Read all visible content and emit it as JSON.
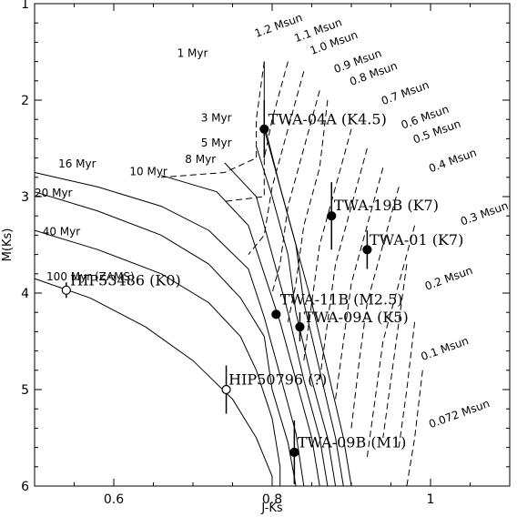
{
  "chart_data": {
    "type": "line",
    "xlabel": "J-Ks",
    "ylabel": "M(Ks)",
    "xlim": [
      0.5,
      1.1
    ],
    "ylim": [
      6,
      1
    ],
    "xticks": [
      0.6,
      0.8,
      1.0
    ],
    "xtick_labels": [
      "0.6",
      "0.8",
      "1"
    ],
    "yticks": [
      1,
      2,
      3,
      4,
      5,
      6
    ],
    "ytick_labels": [
      "1",
      "2",
      "3",
      "4",
      "5",
      "6"
    ],
    "grid": false,
    "isochrones": [
      {
        "label": "1 Myr",
        "label_at": [
          0.68,
          1.55
        ],
        "points": [
          [
            0.79,
            1.6
          ],
          [
            0.79,
            2.3
          ],
          [
            0.81,
            2.9
          ],
          [
            0.83,
            3.5
          ],
          [
            0.85,
            4.1
          ],
          [
            0.87,
            4.8
          ],
          [
            0.89,
            5.5
          ],
          [
            0.9,
            6.0
          ]
        ]
      },
      {
        "label": "3 Myr",
        "label_at": [
          0.71,
          2.22
        ],
        "points": [
          [
            0.79,
            2.25
          ],
          [
            0.81,
            2.9
          ],
          [
            0.83,
            3.5
          ],
          [
            0.84,
            4.1
          ],
          [
            0.86,
            4.8
          ],
          [
            0.88,
            5.5
          ],
          [
            0.89,
            6.0
          ]
        ]
      },
      {
        "label": "5 Myr",
        "label_at": [
          0.71,
          2.48
        ],
        "points": [
          [
            0.78,
            2.48
          ],
          [
            0.8,
            3.0
          ],
          [
            0.82,
            3.6
          ],
          [
            0.83,
            4.2
          ],
          [
            0.85,
            4.9
          ],
          [
            0.87,
            5.5
          ],
          [
            0.88,
            6.0
          ]
        ]
      },
      {
        "label": "8 Myr",
        "label_at": [
          0.69,
          2.65
        ],
        "points": [
          [
            0.74,
            2.65
          ],
          [
            0.78,
            3.0
          ],
          [
            0.8,
            3.6
          ],
          [
            0.82,
            4.2
          ],
          [
            0.84,
            4.9
          ],
          [
            0.86,
            5.5
          ],
          [
            0.87,
            6.0
          ]
        ]
      },
      {
        "label": "10 Myr",
        "label_at": [
          0.62,
          2.78
        ],
        "points": [
          [
            0.66,
            2.78
          ],
          [
            0.73,
            2.95
          ],
          [
            0.77,
            3.3
          ],
          [
            0.79,
            3.8
          ],
          [
            0.81,
            4.3
          ],
          [
            0.83,
            4.9
          ],
          [
            0.85,
            5.5
          ],
          [
            0.86,
            6.0
          ]
        ]
      },
      {
        "label": "16 Myr",
        "label_at": [
          0.53,
          2.7
        ],
        "points": [
          [
            0.5,
            2.75
          ],
          [
            0.58,
            2.9
          ],
          [
            0.66,
            3.1
          ],
          [
            0.72,
            3.35
          ],
          [
            0.77,
            3.75
          ],
          [
            0.79,
            4.25
          ],
          [
            0.81,
            4.85
          ],
          [
            0.83,
            5.45
          ],
          [
            0.84,
            6.0
          ]
        ]
      },
      {
        "label": "20 Myr",
        "label_at": [
          0.5,
          3.0
        ],
        "points": [
          [
            0.5,
            2.95
          ],
          [
            0.58,
            3.15
          ],
          [
            0.66,
            3.4
          ],
          [
            0.72,
            3.7
          ],
          [
            0.76,
            4.05
          ],
          [
            0.79,
            4.45
          ],
          [
            0.8,
            5.0
          ],
          [
            0.82,
            5.55
          ],
          [
            0.83,
            6.0
          ]
        ]
      },
      {
        "label": "40 Myr",
        "label_at": [
          0.51,
          3.4
        ],
        "points": [
          [
            0.5,
            3.35
          ],
          [
            0.58,
            3.55
          ],
          [
            0.66,
            3.8
          ],
          [
            0.72,
            4.1
          ],
          [
            0.76,
            4.45
          ],
          [
            0.78,
            4.8
          ],
          [
            0.8,
            5.3
          ],
          [
            0.81,
            5.8
          ],
          [
            0.81,
            6.0
          ]
        ]
      },
      {
        "label": "100 Myr (ZAMS)",
        "label_at": [
          0.515,
          3.87
        ],
        "points": [
          [
            0.5,
            3.85
          ],
          [
            0.57,
            4.05
          ],
          [
            0.64,
            4.35
          ],
          [
            0.7,
            4.7
          ],
          [
            0.75,
            5.1
          ],
          [
            0.78,
            5.5
          ],
          [
            0.8,
            5.9
          ],
          [
            0.8,
            6.0
          ]
        ]
      }
    ],
    "mass_tracks": [
      {
        "label": "1.2 Msun",
        "label_at": [
          0.78,
          1.35
        ],
        "points": [
          [
            0.79,
            1.6
          ],
          [
            0.78,
            2.2
          ],
          [
            0.78,
            2.6
          ],
          [
            0.74,
            2.75
          ],
          [
            0.66,
            2.8
          ]
        ]
      },
      {
        "label": "1.1 Msun",
        "label_at": [
          0.83,
          1.4
        ],
        "points": [
          [
            0.82,
            1.6
          ],
          [
            0.8,
            2.2
          ],
          [
            0.79,
            2.6
          ],
          [
            0.79,
            3.0
          ],
          [
            0.74,
            3.05
          ]
        ]
      },
      {
        "label": "1.0 Msun",
        "label_at": [
          0.85,
          1.53
        ],
        "points": [
          [
            0.84,
            1.7
          ],
          [
            0.82,
            2.3
          ],
          [
            0.8,
            2.9
          ],
          [
            0.79,
            3.4
          ],
          [
            0.77,
            3.6
          ]
        ]
      },
      {
        "label": "0.9 Msun",
        "label_at": [
          0.88,
          1.72
        ],
        "points": [
          [
            0.86,
            1.9
          ],
          [
            0.84,
            2.5
          ],
          [
            0.82,
            3.1
          ],
          [
            0.81,
            3.7
          ],
          [
            0.8,
            4.0
          ]
        ]
      },
      {
        "label": "0.8 Msun",
        "label_at": [
          0.9,
          1.85
        ],
        "points": [
          [
            0.87,
            2.0
          ],
          [
            0.86,
            2.7
          ],
          [
            0.84,
            3.3
          ],
          [
            0.83,
            3.9
          ],
          [
            0.82,
            4.3
          ]
        ]
      },
      {
        "label": "0.7 Msun",
        "label_at": [
          0.94,
          2.05
        ],
        "points": [
          [
            0.9,
            2.3
          ],
          [
            0.88,
            2.9
          ],
          [
            0.86,
            3.5
          ],
          [
            0.85,
            4.1
          ],
          [
            0.84,
            4.7
          ]
        ]
      },
      {
        "label": "0.6 Msun",
        "label_at": [
          0.965,
          2.3
        ],
        "points": [
          [
            0.92,
            2.5
          ],
          [
            0.9,
            3.1
          ],
          [
            0.88,
            3.7
          ],
          [
            0.87,
            4.3
          ],
          [
            0.86,
            4.9
          ]
        ]
      },
      {
        "label": "0.5 Msun",
        "label_at": [
          0.98,
          2.45
        ],
        "points": [
          [
            0.94,
            2.7
          ],
          [
            0.92,
            3.3
          ],
          [
            0.9,
            3.9
          ],
          [
            0.89,
            4.5
          ],
          [
            0.88,
            5.1
          ]
        ]
      },
      {
        "label": "0.4 Msun",
        "label_at": [
          1.0,
          2.75
        ],
        "points": [
          [
            0.96,
            2.9
          ],
          [
            0.94,
            3.5
          ],
          [
            0.92,
            4.1
          ],
          [
            0.91,
            4.7
          ],
          [
            0.9,
            5.4
          ]
        ]
      },
      {
        "label": "0.3 Msun",
        "label_at": [
          1.04,
          3.3
        ],
        "points": [
          [
            0.98,
            3.3
          ],
          [
            0.96,
            3.9
          ],
          [
            0.94,
            4.5
          ],
          [
            0.93,
            5.1
          ],
          [
            0.92,
            5.7
          ]
        ]
      },
      {
        "label": "0.2 Msun",
        "label_at": [
          0.995,
          3.97
        ],
        "points": [
          [
            0.97,
            3.7
          ],
          [
            0.96,
            4.3
          ],
          [
            0.95,
            4.9
          ],
          [
            0.94,
            5.5
          ]
        ]
      },
      {
        "label": "0.1 Msun",
        "label_at": [
          0.99,
          4.7
        ],
        "points": [
          [
            0.98,
            4.3
          ],
          [
            0.97,
            5.0
          ],
          [
            0.96,
            5.6
          ]
        ]
      },
      {
        "label": "0.072 Msun",
        "label_at": [
          1.0,
          5.4
        ],
        "points": [
          [
            0.99,
            4.8
          ],
          [
            0.98,
            5.5
          ],
          [
            0.97,
            6.0
          ]
        ]
      }
    ],
    "stars": [
      {
        "label": "TWA-04A (K4.5)",
        "x": 0.79,
        "y": 2.3,
        "err": 0.3,
        "filled": true,
        "label_at": [
          0.795,
          2.25
        ]
      },
      {
        "label": "TWA-19B (K7)",
        "x": 0.875,
        "y": 3.2,
        "err": 0.35,
        "filled": true,
        "label_at": [
          0.878,
          3.14
        ]
      },
      {
        "label": "TWA-01 (K7)",
        "x": 0.92,
        "y": 3.55,
        "err": 0.2,
        "filled": true,
        "label_at": [
          0.923,
          3.5
        ]
      },
      {
        "label": "HIP53486 (K0)",
        "x": 0.54,
        "y": 3.97,
        "err": 0.08,
        "filled": false,
        "label_at": [
          0.545,
          3.92
        ]
      },
      {
        "label": "TWA-11B (M2.5)",
        "x": 0.805,
        "y": 4.22,
        "err": 0.0,
        "filled": true,
        "label_at": [
          0.81,
          4.12
        ]
      },
      {
        "label": "TWA-09A (K5)",
        "x": 0.835,
        "y": 4.35,
        "err": 0.15,
        "filled": true,
        "label_at": [
          0.84,
          4.3
        ]
      },
      {
        "label": "HIP50796 (?)",
        "x": 0.742,
        "y": 5.0,
        "err": 0.25,
        "filled": false,
        "label_at": [
          0.745,
          4.95
        ]
      },
      {
        "label": "TWA-09B (M1)",
        "x": 0.828,
        "y": 5.65,
        "err": 0.33,
        "filled": true,
        "label_at": [
          0.832,
          5.6
        ]
      }
    ]
  }
}
